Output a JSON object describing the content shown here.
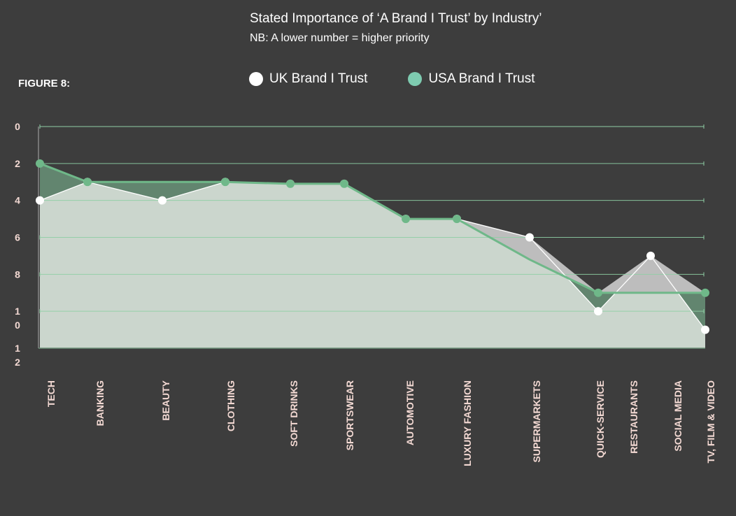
{
  "title": "Stated Importance of ‘A Brand I Trust’ by Industry’",
  "subtitle": "NB: A lower number = higher priority",
  "figure_label": "FIGURE 8:",
  "colors": {
    "background": "#3d3d3d",
    "uk": "#ffffff",
    "usa": "#6fb889",
    "legend_usa": "#7ecbb0",
    "uk_area": "#cbd6cd",
    "usa_area": "#62856f",
    "gap_area": "#bdbdbd",
    "grid": "#8fcfa5",
    "tick_text": "#f3d9d3"
  },
  "legend": [
    {
      "label": "UK Brand I Trust",
      "color": "#ffffff"
    },
    {
      "label": "USA Brand I Trust",
      "color": "#7ecbb0"
    }
  ],
  "chart_data": {
    "type": "area",
    "title": "Stated Importance of ‘A Brand I Trust’ by Industry’",
    "subtitle": "NB: A lower number = higher priority",
    "xlabel": "",
    "ylabel": "",
    "y_inverted": true,
    "ylim": [
      0,
      12
    ],
    "yticks": [
      {
        "value": 0,
        "lines": [
          "0"
        ]
      },
      {
        "value": 2,
        "lines": [
          "2"
        ]
      },
      {
        "value": 4,
        "lines": [
          "4"
        ]
      },
      {
        "value": 6,
        "lines": [
          "6"
        ]
      },
      {
        "value": 8,
        "lines": [
          "8"
        ]
      },
      {
        "value": 10,
        "lines": [
          "1",
          "0"
        ]
      },
      {
        "value": 12,
        "lines": [
          "1",
          "2"
        ]
      }
    ],
    "grid": true,
    "legend_position": "top",
    "categories": [
      {
        "name": "TECH",
        "lines": [
          "TECH"
        ]
      },
      {
        "name": "BANKING",
        "lines": [
          "BANKING"
        ]
      },
      {
        "name": "BEAUTY",
        "lines": [
          "BEAUTY"
        ]
      },
      {
        "name": "CLOTHING",
        "lines": [
          "CLOTHING"
        ]
      },
      {
        "name": "SOFT DRINKS",
        "lines": [
          "SOFT DRINKS"
        ]
      },
      {
        "name": "SPORTSWEAR",
        "lines": [
          "SPORTSWEAR"
        ]
      },
      {
        "name": "AUTOMOTIVE",
        "lines": [
          "AUTOMOTIVE"
        ]
      },
      {
        "name": "LUXURY FASHION",
        "lines": [
          "LUXURY FASHION"
        ]
      },
      {
        "name": "SUPERMARKETS",
        "lines": [
          "SUPERMARKETS"
        ]
      },
      {
        "name": "QUICK-SERVICE RESTAURANTS",
        "lines": [
          "QUICK-SERVICE",
          "RESTAURANTS"
        ]
      },
      {
        "name": "SOCIAL MEDIA",
        "lines": [
          "SOCIAL MEDIA"
        ]
      },
      {
        "name": "TV, FILM & VIDEO",
        "lines": [
          "TV, FILM & VIDEO"
        ]
      }
    ],
    "series": [
      {
        "name": "UK Brand I Trust",
        "values": [
          4,
          3,
          4,
          3,
          3.1,
          3.1,
          5,
          5,
          6,
          10,
          7,
          11
        ],
        "markers": [
          true,
          true,
          true,
          true,
          true,
          true,
          true,
          true,
          true,
          true,
          true,
          true
        ]
      },
      {
        "name": "USA Brand I Trust",
        "values": [
          2,
          3,
          3,
          3,
          3.1,
          3.1,
          5,
          5,
          7.2,
          9,
          9,
          9
        ],
        "markers": [
          true,
          true,
          false,
          true,
          true,
          true,
          true,
          true,
          false,
          true,
          false,
          true
        ]
      }
    ]
  }
}
